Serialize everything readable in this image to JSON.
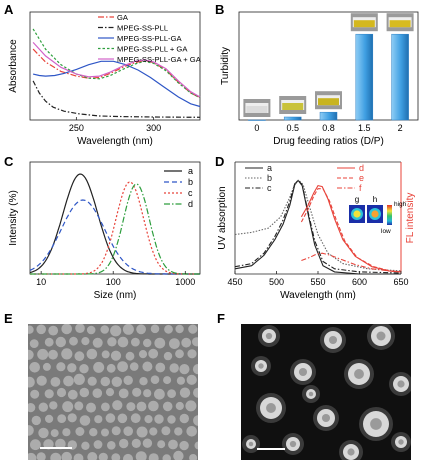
{
  "panels": {
    "A": {
      "letter": "A",
      "chart_data": {
        "type": "line",
        "xlabel": "Wavelength (nm)",
        "ylabel": "Absorbance",
        "xlim": [
          220,
          330
        ],
        "ylim": [
          0,
          1.6
        ],
        "xticks": [
          "250",
          "300"
        ],
        "legend": "top-right",
        "series": [
          {
            "name": "GA",
            "color": "#e8433a",
            "dash": "6 2 1.5 2",
            "points": [
              [
                222,
                1.05
              ],
              [
                230,
                0.86
              ],
              [
                240,
                0.72
              ],
              [
                250,
                0.65
              ],
              [
                258,
                0.62
              ],
              [
                265,
                0.63
              ],
              [
                272,
                0.69
              ],
              [
                280,
                0.78
              ],
              [
                288,
                0.85
              ],
              [
                294,
                0.88
              ],
              [
                300,
                0.85
              ],
              [
                308,
                0.74
              ],
              [
                316,
                0.56
              ],
              [
                324,
                0.4
              ],
              [
                330,
                0.33
              ]
            ]
          },
          {
            "name": "MPEG-SS-PLL",
            "color": "#222222",
            "dash": "5 2 1.5 2",
            "points": [
              [
                222,
                0.58
              ],
              [
                226,
                0.4
              ],
              [
                230,
                0.28
              ],
              [
                235,
                0.19
              ],
              [
                242,
                0.13
              ],
              [
                252,
                0.09
              ],
              [
                265,
                0.06
              ],
              [
                280,
                0.05
              ],
              [
                300,
                0.045
              ],
              [
                330,
                0.04
              ]
            ]
          },
          {
            "name": "MPEG-SS-PLL-GA",
            "color": "#2e56c6",
            "dash": "",
            "points": [
              [
                222,
                0.68
              ],
              [
                226,
                0.66
              ],
              [
                230,
                0.65
              ],
              [
                236,
                0.66
              ],
              [
                242,
                0.69
              ],
              [
                250,
                0.75
              ],
              [
                258,
                0.82
              ],
              [
                266,
                0.87
              ],
              [
                274,
                0.87
              ],
              [
                282,
                0.82
              ],
              [
                290,
                0.74
              ],
              [
                298,
                0.63
              ],
              [
                306,
                0.5
              ],
              [
                316,
                0.34
              ],
              [
                324,
                0.24
              ],
              [
                330,
                0.2
              ]
            ]
          },
          {
            "name": "MPEG-SS-PLL + GA",
            "color": "#2e9e3e",
            "dash": "2.5 2",
            "points": [
              [
                222,
                1.35
              ],
              [
                230,
                1.05
              ],
              [
                240,
                0.82
              ],
              [
                250,
                0.68
              ],
              [
                258,
                0.62
              ],
              [
                265,
                0.61
              ],
              [
                272,
                0.66
              ],
              [
                280,
                0.75
              ],
              [
                288,
                0.83
              ],
              [
                294,
                0.87
              ],
              [
                300,
                0.84
              ],
              [
                308,
                0.73
              ],
              [
                316,
                0.55
              ],
              [
                324,
                0.4
              ],
              [
                330,
                0.33
              ]
            ]
          },
          {
            "name": "MPEG-SS-PLL-GA + GA",
            "color": "#d262c8",
            "dash": "",
            "points": [
              [
                222,
                1.15
              ],
              [
                230,
                0.95
              ],
              [
                240,
                0.78
              ],
              [
                250,
                0.68
              ],
              [
                258,
                0.64
              ],
              [
                265,
                0.65
              ],
              [
                272,
                0.71
              ],
              [
                280,
                0.8
              ],
              [
                288,
                0.87
              ],
              [
                294,
                0.89
              ],
              [
                300,
                0.86
              ],
              [
                308,
                0.76
              ],
              [
                316,
                0.58
              ],
              [
                324,
                0.42
              ],
              [
                330,
                0.34
              ]
            ]
          }
        ]
      }
    },
    "B": {
      "letter": "B",
      "chart_data": {
        "type": "bar",
        "xlabel": "Drug feeding ratios (D/P)",
        "ylabel": "Turbidity",
        "categories": [
          "0",
          "0.5",
          "0.8",
          "1.5",
          "2"
        ],
        "values": [
          0.0,
          0.05,
          0.13,
          1.43,
          1.43
        ],
        "ylim": [
          0,
          1.8
        ],
        "bar_color": "#3f9fe2"
      },
      "vial_colors": [
        "#dcdcdc",
        "#c9c23a",
        "#c8b420",
        "#d4b81e",
        "#d7bb20"
      ]
    },
    "C": {
      "letter": "C",
      "chart_data": {
        "type": "line",
        "xlabel": "Size (nm)",
        "ylabel": "Intensity (%)",
        "xscale": "log",
        "xlim": [
          7,
          1600
        ],
        "xticks": [
          "10",
          "100",
          "1000"
        ],
        "legend": "top-right",
        "series": [
          {
            "name": "a",
            "color": "#222222",
            "dash": "",
            "center": 35,
            "width": 0.24,
            "peak": 1.0
          },
          {
            "name": "b",
            "color": "#2e56c6",
            "dash": "5 3",
            "center": 38,
            "width": 0.3,
            "peak": 0.74
          },
          {
            "name": "c",
            "color": "#e8433a",
            "dash": "2 2",
            "center": 170,
            "width": 0.19,
            "peak": 0.92
          },
          {
            "name": "d",
            "color": "#2e9e3e",
            "dash": "6 2 1.5 2",
            "center": 210,
            "width": 0.18,
            "peak": 0.9
          }
        ]
      }
    },
    "D": {
      "letter": "D",
      "chart_data": {
        "type": "line",
        "xlabel": "Wavelength (nm)",
        "ylabel": "UV absorption",
        "y2label": "FL intensity",
        "xlim": [
          450,
          650
        ],
        "xticks": [
          "450",
          "500",
          "550",
          "600",
          "650"
        ],
        "legend": "top",
        "series": [
          {
            "name": "a",
            "color": "#222222",
            "dash": "",
            "axis": "left",
            "points": [
              [
                450,
                0.05
              ],
              [
                470,
                0.08
              ],
              [
                485,
                0.18
              ],
              [
                498,
                0.33
              ],
              [
                508,
                0.48
              ],
              [
                516,
                0.66
              ],
              [
                522,
                0.86
              ],
              [
                526,
                0.9
              ],
              [
                531,
                0.85
              ],
              [
                538,
                0.58
              ],
              [
                546,
                0.28
              ],
              [
                556,
                0.08
              ],
              [
                570,
                0.02
              ],
              [
                600,
                0.0
              ],
              [
                650,
                0.0
              ]
            ]
          },
          {
            "name": "b",
            "color": "#666666",
            "dash": "1.5 1.5",
            "axis": "left",
            "points": [
              [
                450,
                0.38
              ],
              [
                470,
                0.4
              ],
              [
                490,
                0.44
              ],
              [
                505,
                0.55
              ],
              [
                515,
                0.72
              ],
              [
                523,
                0.88
              ],
              [
                527,
                0.9
              ],
              [
                532,
                0.86
              ],
              [
                540,
                0.64
              ],
              [
                550,
                0.38
              ],
              [
                562,
                0.2
              ],
              [
                580,
                0.1
              ],
              [
                610,
                0.05
              ],
              [
                650,
                0.03
              ]
            ]
          },
          {
            "name": "c",
            "color": "#222222",
            "dash": "5 2 1.5 2",
            "axis": "left",
            "points": [
              [
                450,
                0.07
              ],
              [
                470,
                0.1
              ],
              [
                485,
                0.2
              ],
              [
                498,
                0.36
              ],
              [
                508,
                0.52
              ],
              [
                516,
                0.7
              ],
              [
                522,
                0.87
              ],
              [
                526,
                0.9
              ],
              [
                531,
                0.86
              ],
              [
                538,
                0.6
              ],
              [
                546,
                0.32
              ],
              [
                556,
                0.12
              ],
              [
                570,
                0.05
              ],
              [
                600,
                0.02
              ],
              [
                650,
                0.01
              ]
            ]
          },
          {
            "name": "d",
            "color": "#e8433a",
            "dash": "",
            "axis": "right",
            "points": [
              [
                530,
                0.55
              ],
              [
                538,
                0.66
              ],
              [
                545,
                0.78
              ],
              [
                550,
                0.85
              ],
              [
                555,
                0.84
              ],
              [
                562,
                0.72
              ],
              [
                570,
                0.53
              ],
              [
                580,
                0.33
              ],
              [
                595,
                0.17
              ],
              [
                615,
                0.07
              ],
              [
                635,
                0.03
              ],
              [
                650,
                0.02
              ]
            ]
          },
          {
            "name": "e",
            "color": "#e8433a",
            "dash": "4 2",
            "axis": "right",
            "points": [
              [
                530,
                0.5
              ],
              [
                538,
                0.62
              ],
              [
                545,
                0.75
              ],
              [
                550,
                0.82
              ],
              [
                556,
                0.82
              ],
              [
                564,
                0.7
              ],
              [
                572,
                0.52
              ],
              [
                582,
                0.32
              ],
              [
                597,
                0.16
              ],
              [
                617,
                0.07
              ],
              [
                637,
                0.03
              ],
              [
                650,
                0.02
              ]
            ]
          },
          {
            "name": "f",
            "color": "#e8433a",
            "dash": "5 2 1.5 2",
            "axis": "right",
            "points": [
              [
                530,
                0.13
              ],
              [
                540,
                0.16
              ],
              [
                548,
                0.19
              ],
              [
                555,
                0.2
              ],
              [
                565,
                0.18
              ],
              [
                578,
                0.14
              ],
              [
                595,
                0.09
              ],
              [
                615,
                0.05
              ],
              [
                635,
                0.03
              ],
              [
                650,
                0.02
              ]
            ]
          }
        ]
      },
      "inset": {
        "labels": [
          "g",
          "h"
        ],
        "colorbar_high": "high",
        "colorbar_low": "low"
      }
    },
    "E": {
      "letter": "E",
      "description_colors": {
        "background": "#7a7a7a",
        "particle": "#b5b5b5"
      }
    },
    "F": {
      "letter": "F",
      "description_colors": {
        "background": "#101010",
        "particle": "#d8d8d8"
      }
    }
  }
}
